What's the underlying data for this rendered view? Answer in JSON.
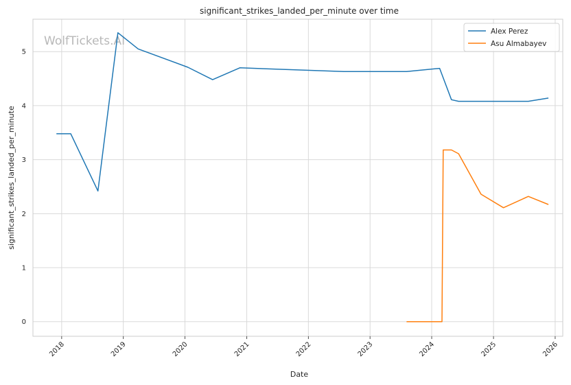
{
  "chart_data": {
    "type": "line",
    "title": "significant_strikes_landed_per_minute over time",
    "xlabel": "Date",
    "ylabel": "significant_strikes_landed_per_minute",
    "watermark": "WolfTickets.AI",
    "x_type": "date",
    "xlim": [
      "2017-07-15",
      "2026-02-15"
    ],
    "ylim": [
      -0.27,
      5.6
    ],
    "x_ticks": [
      "2018",
      "2019",
      "2020",
      "2021",
      "2022",
      "2023",
      "2024",
      "2025",
      "2026"
    ],
    "y_ticks": [
      0,
      1,
      2,
      3,
      4,
      5
    ],
    "grid": true,
    "legend_position": "top-right",
    "series": [
      {
        "name": "Alex Perez",
        "color": "#1f77b4",
        "points": [
          [
            "2017-12-01",
            3.48
          ],
          [
            "2018-02-24",
            3.48
          ],
          [
            "2018-08-04",
            2.42
          ],
          [
            "2018-11-30",
            5.35
          ],
          [
            "2019-03-30",
            5.05
          ],
          [
            "2020-01-18",
            4.71
          ],
          [
            "2020-06-13",
            4.48
          ],
          [
            "2020-11-21",
            4.7
          ],
          [
            "2022-07-30",
            4.63
          ],
          [
            "2023-08-05",
            4.63
          ],
          [
            "2024-02-17",
            4.69
          ],
          [
            "2024-04-27",
            4.11
          ],
          [
            "2024-06-08",
            4.08
          ],
          [
            "2025-07-26",
            4.08
          ],
          [
            "2025-11-22",
            4.14
          ]
        ]
      },
      {
        "name": "Asu Almabayev",
        "color": "#ff7f0e",
        "points": [
          [
            "2023-08-05",
            0.0
          ],
          [
            "2024-03-02",
            0.0
          ],
          [
            "2024-03-09",
            3.18
          ],
          [
            "2024-04-27",
            3.18
          ],
          [
            "2024-06-08",
            3.11
          ],
          [
            "2024-10-19",
            2.36
          ],
          [
            "2025-03-01",
            2.11
          ],
          [
            "2025-07-26",
            2.32
          ],
          [
            "2025-11-22",
            2.17
          ]
        ]
      }
    ]
  }
}
